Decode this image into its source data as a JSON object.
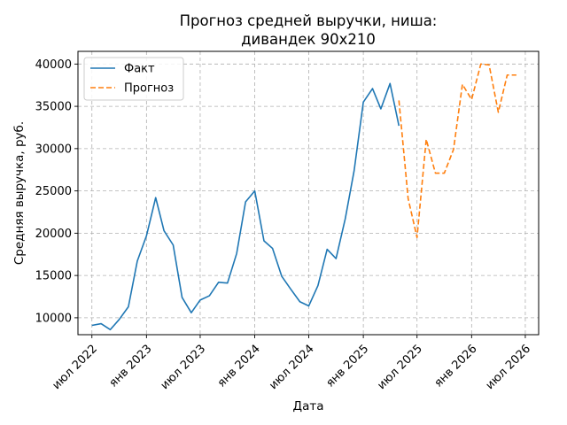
{
  "chart_data": {
    "type": "line",
    "title": "Прогноз средней выручки, ниша:\nдивандек 90x210",
    "xlabel": "Дата",
    "ylabel": "Средняя выручка, руб.",
    "x_range": [
      "2022-05-15",
      "2026-08-15"
    ],
    "ylim": [
      8000,
      41500
    ],
    "x_ticks": [
      {
        "date": "2022-07-01",
        "label": "июл 2022"
      },
      {
        "date": "2023-01-01",
        "label": "янв 2023"
      },
      {
        "date": "2023-07-01",
        "label": "июл 2023"
      },
      {
        "date": "2024-01-01",
        "label": "янв 2024"
      },
      {
        "date": "2024-07-01",
        "label": "июл 2024"
      },
      {
        "date": "2025-01-01",
        "label": "янв 2025"
      },
      {
        "date": "2025-07-01",
        "label": "июл 2025"
      },
      {
        "date": "2026-01-01",
        "label": "янв 2026"
      },
      {
        "date": "2026-07-01",
        "label": "июл 2026"
      }
    ],
    "y_ticks": [
      10000,
      15000,
      20000,
      25000,
      30000,
      35000,
      40000
    ],
    "grid": true,
    "legend_position": "top-left",
    "series": [
      {
        "name": "Факт",
        "color": "#1f77b4",
        "style": "solid",
        "x": [
          "2022-07-01",
          "2022-08-01",
          "2022-09-01",
          "2022-10-01",
          "2022-11-01",
          "2022-12-01",
          "2023-01-01",
          "2023-02-01",
          "2023-03-01",
          "2023-04-01",
          "2023-05-01",
          "2023-06-01",
          "2023-07-01",
          "2023-08-01",
          "2023-09-01",
          "2023-10-01",
          "2023-11-01",
          "2023-12-01",
          "2024-01-01",
          "2024-02-01",
          "2024-03-01",
          "2024-04-01",
          "2024-05-01",
          "2024-06-01",
          "2024-07-01",
          "2024-08-01",
          "2024-09-01",
          "2024-10-01",
          "2024-11-01",
          "2024-12-01",
          "2025-01-01",
          "2025-02-01",
          "2025-03-01",
          "2025-04-01",
          "2025-05-01"
        ],
        "y": [
          9100,
          9300,
          8600,
          9800,
          11300,
          16700,
          19700,
          24200,
          20300,
          18600,
          12400,
          10600,
          12100,
          12600,
          14200,
          14100,
          17600,
          23700,
          25000,
          19100,
          18200,
          14900,
          13400,
          11900,
          11400,
          13800,
          18100,
          17000,
          21700,
          27400,
          35500,
          37100,
          34700,
          37700,
          32700
        ]
      },
      {
        "name": "Прогноз",
        "color": "#ff7f0e",
        "style": "dashed",
        "x": [
          "2025-05-01",
          "2025-06-01",
          "2025-07-01",
          "2025-08-01",
          "2025-09-01",
          "2025-10-01",
          "2025-11-01",
          "2025-12-01",
          "2026-01-01",
          "2026-02-01",
          "2026-03-01",
          "2026-04-01",
          "2026-05-01",
          "2026-06-01"
        ],
        "y": [
          35700,
          24100,
          19500,
          31100,
          27100,
          27100,
          29900,
          37600,
          35800,
          40000,
          39900,
          34300,
          38700,
          38700
        ]
      }
    ]
  }
}
